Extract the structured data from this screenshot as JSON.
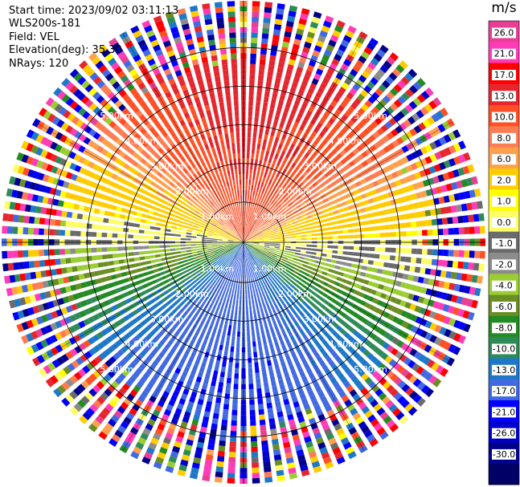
{
  "header": {
    "start_time": "Start time: 2023/09/02 03:11:13",
    "site": "WLS200s-181",
    "field": "Field: VEL",
    "elevation": "Elevation(deg): 35.30",
    "nrays": "NRays: 120"
  },
  "colorbar": {
    "unit": "m/s",
    "labels": [
      "26.0",
      "21.0",
      "17.0",
      "13.0",
      "10.0",
      "8.0",
      "6.0",
      "2.0",
      "1.0",
      "0.0",
      "-1.0",
      "-2.0",
      "-4.0",
      "-6.0",
      "-8.0",
      "-10.0",
      "-13.0",
      "-17.0",
      "-21.0",
      "-26.0",
      "-30.0"
    ],
    "colors": [
      "#e83e94",
      "#ff3bb8",
      "#ff0000",
      "#e5262e",
      "#ff5025",
      "#ff7b52",
      "#ffa04d",
      "#ffcc00",
      "#ffff00",
      "#fdfd66",
      "#6b6b6b",
      "#8c8c8c",
      "#9acd32",
      "#6b8e23",
      "#228b22",
      "#2e8b57",
      "#1e78c8",
      "#4169e1",
      "#0000ff",
      "#0000cd",
      "#00008b",
      "#000066"
    ]
  },
  "chart_data": {
    "type": "ppi",
    "field": "VEL",
    "units": "m/s",
    "nrays": 120,
    "elevation_deg": 35.3,
    "range_rings_km": [
      1.0,
      2.0,
      3.0,
      4.0,
      5.0
    ],
    "ring_labels": [
      "1.00km",
      "2.00km",
      "3.00km",
      "4.00km",
      "5.00km"
    ],
    "max_range_km": 5.0,
    "color_levels": [
      -30.0,
      -26.0,
      -21.0,
      -17.0,
      -13.0,
      -10.0,
      -8.0,
      -6.0,
      -4.0,
      -2.0,
      -1.0,
      0.0,
      1.0,
      2.0,
      6.0,
      8.0,
      10.0,
      13.0,
      17.0,
      21.0,
      26.0
    ],
    "pattern": {
      "toward_north_velocity_ms": 13,
      "toward_south_velocity_ms": -17,
      "coherent_range_km": 3.6,
      "gray_band_azimuth_deg": 95
    }
  }
}
